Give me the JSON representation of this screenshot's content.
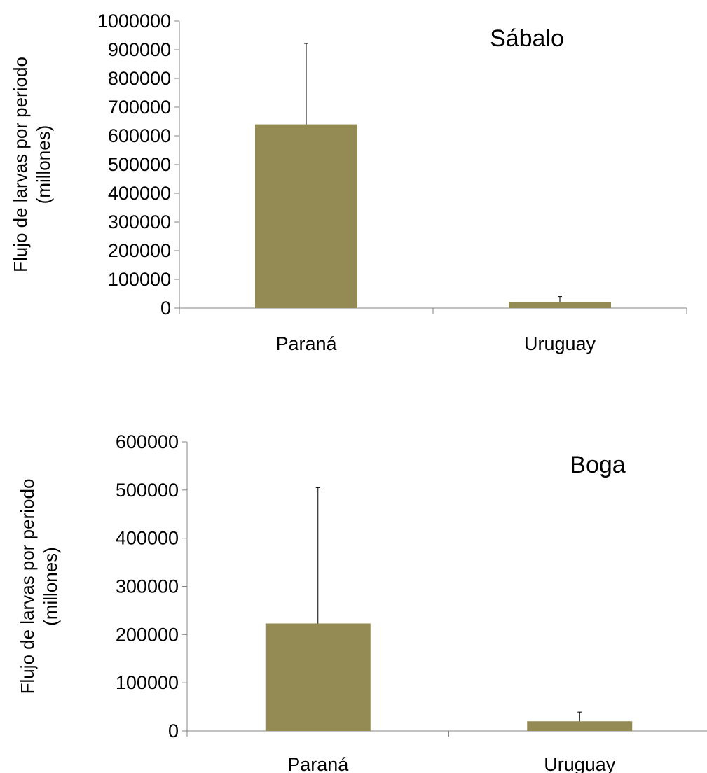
{
  "chart_data": [
    {
      "type": "bar",
      "title": "",
      "annotation": "Sábalo",
      "ylabel_lines": [
        "Flujo de larvas por periodo",
        "(millones)"
      ],
      "xlabel": "",
      "categories": [
        "Paraná",
        "Uruguay"
      ],
      "values": [
        640000,
        20000
      ],
      "error_upper": [
        922000,
        40000
      ],
      "ylim": [
        0,
        1000000
      ],
      "yticks": [
        0,
        100000,
        200000,
        300000,
        400000,
        500000,
        600000,
        700000,
        800000,
        900000,
        1000000
      ],
      "ytick_labels": [
        "0",
        "100000",
        "200000",
        "300000",
        "400000",
        "500000",
        "600000",
        "700000",
        "800000",
        "900000",
        "1000000"
      ],
      "bar_color": "#948a54",
      "grid": false,
      "legend": "none"
    },
    {
      "type": "bar",
      "title": "",
      "annotation": "Boga",
      "ylabel_lines": [
        "Flujo de larvas por periodo",
        "(millones)"
      ],
      "xlabel": "",
      "categories": [
        "Paraná",
        "Uruguay"
      ],
      "values": [
        223000,
        20000
      ],
      "error_upper": [
        505000,
        39000
      ],
      "ylim": [
        0,
        600000
      ],
      "yticks": [
        0,
        100000,
        200000,
        300000,
        400000,
        500000,
        600000
      ],
      "ytick_labels": [
        "0",
        "100000",
        "200000",
        "300000",
        "400000",
        "500000",
        "600000"
      ],
      "bar_color": "#948a54",
      "grid": false,
      "legend": "none"
    }
  ]
}
